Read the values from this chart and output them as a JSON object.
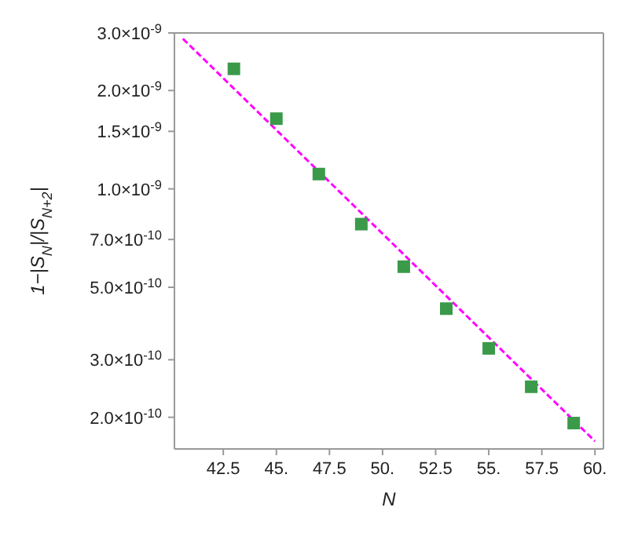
{
  "chart_data": {
    "type": "scatter",
    "xlabel": "N",
    "ylabel": "1−|S$_{N}$|/|S$_{N+2}$|",
    "log": "y",
    "grid": false,
    "marker": "square",
    "xlim": [
      40.2,
      60.4
    ],
    "ylim": [
      1.6e-10,
      3e-09
    ],
    "xticks": [
      42.5,
      {
        "value": 45,
        "label": "45."
      },
      47.5,
      {
        "value": 50,
        "label": "50."
      },
      52.5,
      {
        "value": 55,
        "label": "55."
      },
      57.5,
      {
        "value": 60,
        "label": "60."
      }
    ],
    "yticks": [
      {
        "value": 2e-10,
        "label": "2.0×10$^{-10}$"
      },
      {
        "value": 3e-10,
        "label": "3.0×10$^{-10}$"
      },
      {
        "value": 5e-10,
        "label": "5.0×10$^{-10}$"
      },
      {
        "value": 7e-10,
        "label": "7.0×10$^{-10}$"
      },
      {
        "value": 1e-09,
        "label": "1.0×10$^{-9}$"
      },
      {
        "value": 1.5e-09,
        "label": "1.5×10$^{-9}$"
      },
      {
        "value": 2e-09,
        "label": "2.0×10$^{-9}$"
      },
      {
        "value": 3e-09,
        "label": "3.0×10$^{-9}$"
      }
    ],
    "series": [
      {
        "color": "#3a9a4a",
        "x": [
          43,
          45,
          47,
          49,
          51,
          53,
          55,
          57,
          59
        ],
        "values": [
          2.33e-09,
          1.64e-09,
          1.11e-09,
          7.8e-10,
          5.78e-10,
          4.3e-10,
          3.25e-10,
          2.48e-10,
          1.92e-10
        ]
      },
      {
        "type": "line",
        "color": "#ff00ff",
        "line_style": "dashed",
        "marker": "none",
        "x": [
          40.6,
          60
        ],
        "values": [
          2.88e-09,
          1.69e-10
        ]
      }
    ]
  }
}
